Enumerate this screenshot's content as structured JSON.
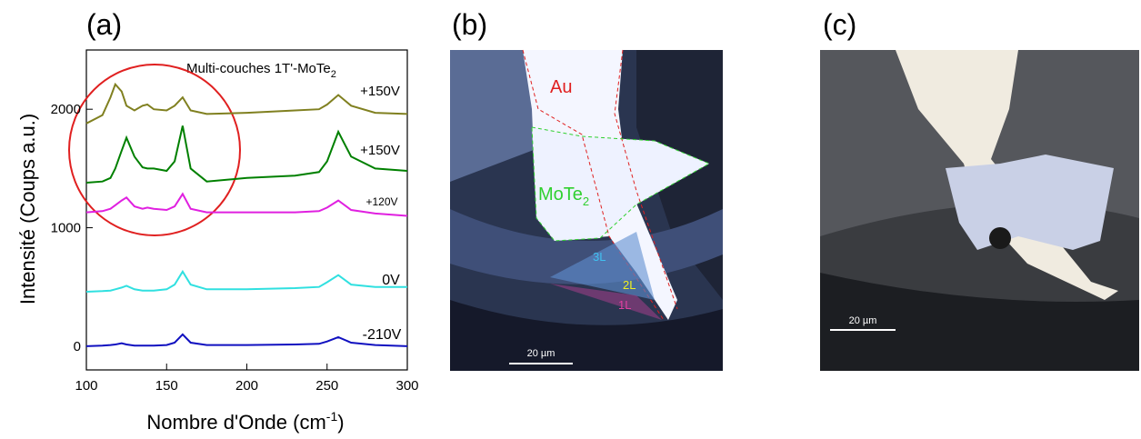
{
  "chart_data": {
    "type": "line",
    "panel_label": "(a)",
    "title": "Multi-couches 1T'-MoTe",
    "title_sub": "2",
    "y_label": "Intensité (Coups a.u.)",
    "x_label": "Nombre d'Onde (cm",
    "x_label_sup": "-1",
    "x_label_end": ")",
    "x": [
      100,
      110,
      115,
      118,
      122,
      125,
      130,
      135,
      138,
      142,
      150,
      155,
      160,
      165,
      175,
      200,
      230,
      245,
      250,
      257,
      265,
      280,
      300
    ],
    "xlim": [
      100,
      300
    ],
    "xticks": [
      100,
      150,
      200,
      250,
      300
    ],
    "ylim": [
      -200,
      2500
    ],
    "yticks": [
      0,
      1000,
      2000
    ],
    "series": [
      {
        "name": "+150V",
        "color": "#808020",
        "values": [
          1880,
          1950,
          2100,
          2210,
          2150,
          2030,
          1990,
          2030,
          2040,
          2000,
          1990,
          2030,
          2100,
          1990,
          1960,
          1970,
          1990,
          2000,
          2040,
          2120,
          2030,
          1970,
          1960
        ]
      },
      {
        "name": "+150V",
        "color": "#008000",
        "values": [
          1380,
          1390,
          1420,
          1500,
          1650,
          1760,
          1600,
          1510,
          1500,
          1500,
          1480,
          1560,
          1860,
          1500,
          1390,
          1420,
          1440,
          1470,
          1560,
          1810,
          1600,
          1500,
          1480
        ]
      },
      {
        "name": "+120V",
        "color": "#e020e0",
        "values": [
          1130,
          1140,
          1160,
          1190,
          1230,
          1255,
          1180,
          1160,
          1170,
          1160,
          1150,
          1180,
          1285,
          1160,
          1130,
          1130,
          1130,
          1140,
          1170,
          1230,
          1150,
          1120,
          1100
        ]
      },
      {
        "name": "0V",
        "color": "#30e0e0",
        "values": [
          460,
          465,
          470,
          480,
          495,
          510,
          480,
          470,
          470,
          470,
          480,
          520,
          630,
          520,
          480,
          480,
          490,
          500,
          540,
          600,
          520,
          500,
          500
        ]
      },
      {
        "name": "-210V",
        "color": "#1010c0",
        "values": [
          0,
          5,
          10,
          15,
          25,
          15,
          5,
          5,
          5,
          5,
          10,
          30,
          100,
          30,
          10,
          10,
          15,
          20,
          40,
          77,
          30,
          10,
          0
        ]
      }
    ]
  },
  "panels": {
    "b": {
      "label": "(b)",
      "au": "Au",
      "mote": "MoTe",
      "mote_sub": "2",
      "l3": "3L",
      "l2": "2L",
      "l1": "1L",
      "scale": "20 µm"
    },
    "c": {
      "label": "(c)",
      "scale": "20 µm"
    }
  }
}
